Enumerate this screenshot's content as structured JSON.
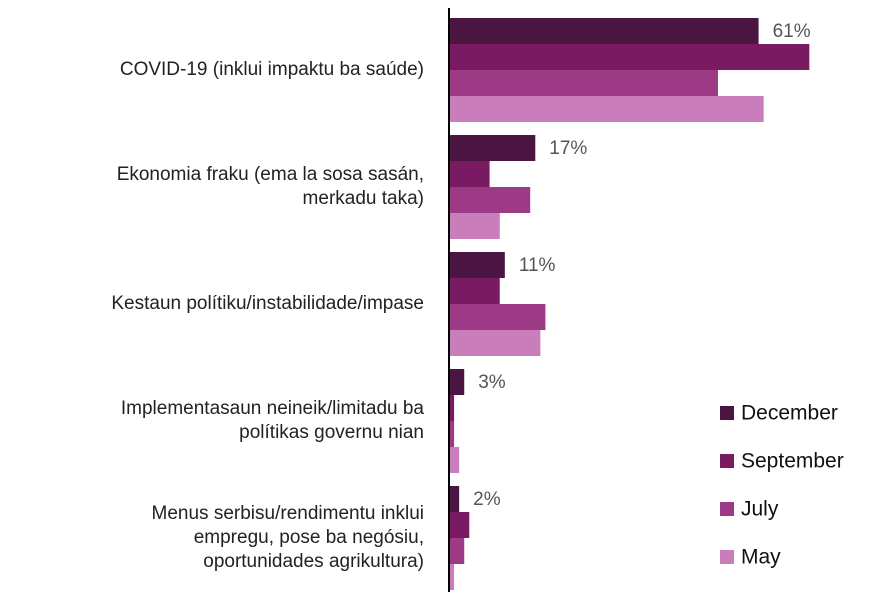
{
  "chart_data": {
    "type": "bar",
    "orientation": "horizontal",
    "categories": [
      "COVID-19 (inklui impaktu ba saúde)",
      "Ekonomia fraku (ema la sosa sasán,\nmerkadu taka)",
      "Kestaun polítiku/instabilidade/impase",
      "Implementasaun neineik/limitadu ba\npolítikas governu nian",
      "Menus serbisu/rendimentu inklui\nempregu, pose ba negósiu,\noportunidades agrikultura)"
    ],
    "series": [
      {
        "name": "December",
        "color": "#4a1540",
        "values": [
          61,
          17,
          11,
          3,
          2
        ],
        "value_labels": [
          "61%",
          "17%",
          "11%",
          "3%",
          "2%"
        ]
      },
      {
        "name": "September",
        "color": "#7a1a63",
        "values": [
          71,
          8,
          10,
          1,
          4
        ]
      },
      {
        "name": "July",
        "color": "#9c3a85",
        "values": [
          53,
          16,
          19,
          1,
          3
        ]
      },
      {
        "name": "May",
        "color": "#c97dbb",
        "values": [
          62,
          10,
          18,
          2,
          1
        ]
      }
    ],
    "xlim": [
      0,
      80
    ],
    "legend": "lower right"
  }
}
